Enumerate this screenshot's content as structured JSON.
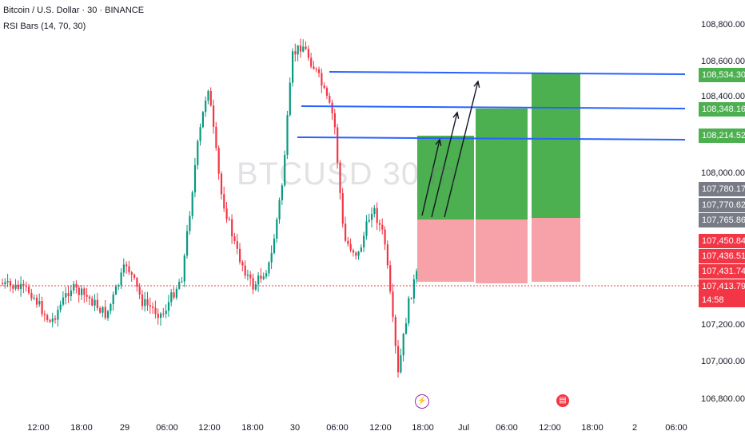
{
  "header": {
    "symbol_line": "Bitcoin / U.S. Dollar · 30 · BINANCE",
    "indicator_line": "RSI Bars (14, 70, 30)"
  },
  "watermark": "BTCUSD 30 m",
  "y_axis": {
    "ticks": [
      "108,800.00",
      "108,600.00",
      "108,400.00",
      "108,000.00",
      "107,200.00",
      "107,000.00",
      "106,800.00"
    ]
  },
  "price_badges": [
    {
      "label": "108,534.30",
      "kind": "green"
    },
    {
      "label": "108,348.16",
      "kind": "green"
    },
    {
      "label": "108,214.52",
      "kind": "green"
    },
    {
      "label": "107,780.17",
      "kind": "gray"
    },
    {
      "label": "107,770.62",
      "kind": "gray"
    },
    {
      "label": "107,765.86",
      "kind": "gray"
    },
    {
      "label": "107,450.84",
      "kind": "red"
    },
    {
      "label": "107,436.51",
      "kind": "red"
    },
    {
      "label": "107,431.74",
      "kind": "red"
    },
    {
      "label": "107,413.79",
      "kind": "red"
    },
    {
      "label": "14:58",
      "kind": "red"
    }
  ],
  "x_axis": {
    "ticks": [
      "12:00",
      "18:00",
      "29",
      "06:00",
      "12:00",
      "18:00",
      "30",
      "06:00",
      "12:00",
      "18:00",
      "Jul",
      "06:00",
      "12:00",
      "18:00",
      "2",
      "06:00"
    ]
  },
  "events": [
    {
      "icon": "lightning-icon"
    },
    {
      "icon": "us-flag-icon"
    }
  ],
  "colors": {
    "up": "#089981",
    "down": "#f23645",
    "hline": "#2962ff",
    "target": "#4caf50",
    "stop": "#f7a1a8",
    "current": "#f23645"
  }
}
